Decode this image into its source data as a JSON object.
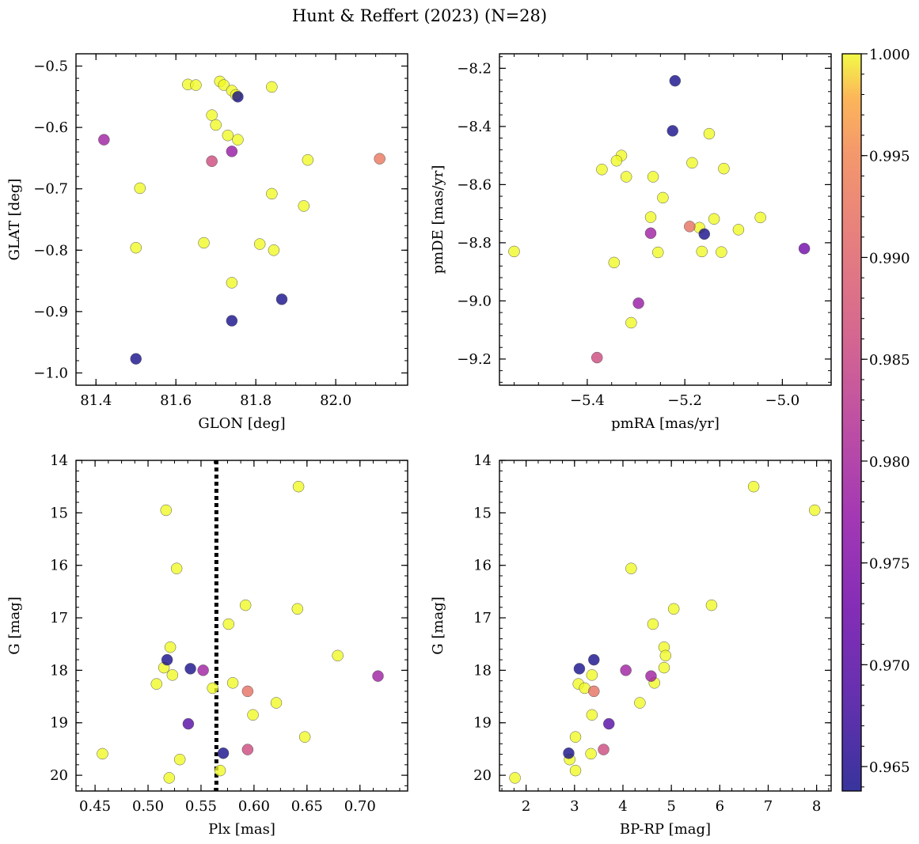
{
  "figure": {
    "title": "Hunt & Reffert (2023) (N=28)"
  },
  "colorbar": {
    "colormap": "plasma",
    "range": [
      0.9638,
      1.0
    ],
    "ticks": [
      "0.965",
      "0.970",
      "0.975",
      "0.980",
      "0.985",
      "0.990",
      "0.995",
      "1.000"
    ],
    "tick_values": [
      0.965,
      0.97,
      0.975,
      0.98,
      0.985,
      0.99,
      0.995,
      1.0
    ]
  },
  "chart_data": [
    {
      "type": "scatter",
      "xlabel": "GLON [deg]",
      "ylabel": "GLAT [deg]",
      "xlim": [
        81.35,
        82.18
      ],
      "ylim": [
        -1.02,
        -0.48
      ],
      "xticks": [
        81.4,
        81.6,
        81.8,
        82.0
      ],
      "xtick_labels": [
        "81.4",
        "81.6",
        "81.8",
        "82.0"
      ],
      "yticks": [
        -0.5,
        -0.6,
        -0.7,
        -0.8,
        -0.9,
        -1.0
      ],
      "ytick_labels": [
        "−0.5",
        "−0.6",
        "−0.7",
        "−0.8",
        "−0.9",
        "−1.0"
      ],
      "points": [
        {
          "x": 81.63,
          "y": -0.53,
          "c": 1.0
        },
        {
          "x": 81.65,
          "y": -0.531,
          "c": 1.0
        },
        {
          "x": 81.71,
          "y": -0.525,
          "c": 1.0
        },
        {
          "x": 81.72,
          "y": -0.531,
          "c": 1.0
        },
        {
          "x": 81.74,
          "y": -0.54,
          "c": 1.0
        },
        {
          "x": 81.755,
          "y": -0.55,
          "c": 0.964
        },
        {
          "x": 81.75,
          "y": -0.547,
          "c": 1.0
        },
        {
          "x": 81.84,
          "y": -0.534,
          "c": 1.0
        },
        {
          "x": 81.69,
          "y": -0.58,
          "c": 1.0
        },
        {
          "x": 81.7,
          "y": -0.596,
          "c": 1.0
        },
        {
          "x": 81.73,
          "y": -0.613,
          "c": 1.0
        },
        {
          "x": 81.755,
          "y": -0.62,
          "c": 1.0
        },
        {
          "x": 81.74,
          "y": -0.639,
          "c": 0.978
        },
        {
          "x": 81.42,
          "y": -0.62,
          "c": 0.979
        },
        {
          "x": 81.69,
          "y": -0.655,
          "c": 0.986
        },
        {
          "x": 82.11,
          "y": -0.651,
          "c": 0.993
        },
        {
          "x": 81.93,
          "y": -0.653,
          "c": 1.0
        },
        {
          "x": 81.51,
          "y": -0.699,
          "c": 1.0
        },
        {
          "x": 81.84,
          "y": -0.708,
          "c": 1.0
        },
        {
          "x": 81.92,
          "y": -0.728,
          "c": 1.0
        },
        {
          "x": 81.5,
          "y": -0.796,
          "c": 1.0
        },
        {
          "x": 81.67,
          "y": -0.788,
          "c": 1.0
        },
        {
          "x": 81.81,
          "y": -0.79,
          "c": 1.0
        },
        {
          "x": 81.845,
          "y": -0.8,
          "c": 1.0
        },
        {
          "x": 81.74,
          "y": -0.853,
          "c": 1.0
        },
        {
          "x": 81.865,
          "y": -0.88,
          "c": 0.964
        },
        {
          "x": 81.74,
          "y": -0.915,
          "c": 0.964
        },
        {
          "x": 81.5,
          "y": -0.977,
          "c": 0.964
        }
      ]
    },
    {
      "type": "scatter",
      "xlabel": "pmRA [mas/yr]",
      "ylabel": "pmDE [mas/yr]",
      "xlim": [
        -5.58,
        -4.9
      ],
      "ylim": [
        -9.29,
        -8.15
      ],
      "xticks": [
        -5.4,
        -5.2,
        -5.0
      ],
      "xtick_labels": [
        "−5.4",
        "−5.2",
        "−5.0"
      ],
      "yticks": [
        -8.2,
        -8.4,
        -8.6,
        -8.8,
        -9.0,
        -9.2
      ],
      "ytick_labels": [
        "−8.2",
        "−8.4",
        "−8.6",
        "−8.8",
        "−9.0",
        "−9.2"
      ],
      "points": [
        {
          "x": -5.22,
          "y": -8.243,
          "c": 0.964
        },
        {
          "x": -5.225,
          "y": -8.415,
          "c": 0.964
        },
        {
          "x": -5.15,
          "y": -8.425,
          "c": 1.0
        },
        {
          "x": -5.33,
          "y": -8.5,
          "c": 1.0
        },
        {
          "x": -5.34,
          "y": -8.518,
          "c": 1.0
        },
        {
          "x": -5.37,
          "y": -8.548,
          "c": 1.0
        },
        {
          "x": -5.185,
          "y": -8.525,
          "c": 1.0
        },
        {
          "x": -5.12,
          "y": -8.545,
          "c": 1.0
        },
        {
          "x": -5.32,
          "y": -8.573,
          "c": 1.0
        },
        {
          "x": -5.265,
          "y": -8.573,
          "c": 1.0
        },
        {
          "x": -5.245,
          "y": -8.645,
          "c": 1.0
        },
        {
          "x": -5.27,
          "y": -8.712,
          "c": 1.0
        },
        {
          "x": -5.045,
          "y": -8.713,
          "c": 1.0
        },
        {
          "x": -5.14,
          "y": -8.718,
          "c": 1.0
        },
        {
          "x": -5.19,
          "y": -8.744,
          "c": 0.992
        },
        {
          "x": -5.17,
          "y": -8.748,
          "c": 1.0
        },
        {
          "x": -5.09,
          "y": -8.755,
          "c": 1.0
        },
        {
          "x": -5.27,
          "y": -8.767,
          "c": 0.979
        },
        {
          "x": -5.16,
          "y": -8.77,
          "c": 0.964
        },
        {
          "x": -4.955,
          "y": -8.82,
          "c": 0.973
        },
        {
          "x": -5.55,
          "y": -8.83,
          "c": 1.0
        },
        {
          "x": -5.255,
          "y": -8.833,
          "c": 1.0
        },
        {
          "x": -5.165,
          "y": -8.83,
          "c": 1.0
        },
        {
          "x": -5.125,
          "y": -8.832,
          "c": 1.0
        },
        {
          "x": -5.345,
          "y": -8.868,
          "c": 1.0
        },
        {
          "x": -5.295,
          "y": -9.008,
          "c": 0.978
        },
        {
          "x": -5.31,
          "y": -9.075,
          "c": 1.0
        },
        {
          "x": -5.38,
          "y": -9.195,
          "c": 0.986
        }
      ]
    },
    {
      "type": "scatter",
      "xlabel": "Plx [mas]",
      "ylabel": "G [mag]",
      "xlim": [
        0.432,
        0.745
      ],
      "ylim": [
        20.3,
        14.0
      ],
      "inverted_y": true,
      "xticks": [
        0.45,
        0.5,
        0.55,
        0.6,
        0.65,
        0.7
      ],
      "xtick_labels": [
        "0.45",
        "0.50",
        "0.55",
        "0.60",
        "0.65",
        "0.70"
      ],
      "yticks": [
        14,
        15,
        16,
        17,
        18,
        19,
        20
      ],
      "ytick_labels": [
        "14",
        "15",
        "16",
        "17",
        "18",
        "19",
        "20"
      ],
      "vline": 0.5645,
      "points": [
        {
          "x": 0.642,
          "y": 14.5,
          "c": 1.0
        },
        {
          "x": 0.517,
          "y": 14.95,
          "c": 1.0
        },
        {
          "x": 0.527,
          "y": 16.06,
          "c": 1.0
        },
        {
          "x": 0.592,
          "y": 16.76,
          "c": 1.0
        },
        {
          "x": 0.641,
          "y": 16.83,
          "c": 1.0
        },
        {
          "x": 0.576,
          "y": 17.12,
          "c": 1.0
        },
        {
          "x": 0.679,
          "y": 17.72,
          "c": 1.0
        },
        {
          "x": 0.521,
          "y": 17.56,
          "c": 1.0
        },
        {
          "x": 0.518,
          "y": 17.8,
          "c": 0.964
        },
        {
          "x": 0.515,
          "y": 17.95,
          "c": 1.0
        },
        {
          "x": 0.54,
          "y": 17.97,
          "c": 0.964
        },
        {
          "x": 0.552,
          "y": 18.0,
          "c": 0.979
        },
        {
          "x": 0.523,
          "y": 18.09,
          "c": 1.0
        },
        {
          "x": 0.717,
          "y": 18.11,
          "c": 0.979
        },
        {
          "x": 0.508,
          "y": 18.26,
          "c": 1.0
        },
        {
          "x": 0.58,
          "y": 18.24,
          "c": 1.0
        },
        {
          "x": 0.561,
          "y": 18.34,
          "c": 1.0
        },
        {
          "x": 0.594,
          "y": 18.4,
          "c": 0.992
        },
        {
          "x": 0.621,
          "y": 18.62,
          "c": 1.0
        },
        {
          "x": 0.599,
          "y": 18.85,
          "c": 1.0
        },
        {
          "x": 0.538,
          "y": 19.02,
          "c": 0.97
        },
        {
          "x": 0.648,
          "y": 19.27,
          "c": 1.0
        },
        {
          "x": 0.594,
          "y": 19.51,
          "c": 0.986
        },
        {
          "x": 0.457,
          "y": 19.59,
          "c": 1.0
        },
        {
          "x": 0.571,
          "y": 19.58,
          "c": 0.964
        },
        {
          "x": 0.53,
          "y": 19.7,
          "c": 1.0
        },
        {
          "x": 0.568,
          "y": 19.91,
          "c": 1.0
        },
        {
          "x": 0.52,
          "y": 20.05,
          "c": 1.0
        }
      ]
    },
    {
      "type": "scatter",
      "xlabel": "BP-RP [mag]",
      "ylabel": "G [mag]",
      "xlim": [
        1.45,
        8.3
      ],
      "ylim": [
        20.3,
        14.0
      ],
      "inverted_y": true,
      "xticks": [
        2,
        3,
        4,
        5,
        6,
        7,
        8
      ],
      "xtick_labels": [
        "2",
        "3",
        "4",
        "5",
        "6",
        "7",
        "8"
      ],
      "yticks": [
        14,
        15,
        16,
        17,
        18,
        19,
        20
      ],
      "ytick_labels": [
        "14",
        "15",
        "16",
        "17",
        "18",
        "19",
        "20"
      ],
      "points": [
        {
          "x": 6.7,
          "y": 14.5,
          "c": 1.0
        },
        {
          "x": 7.96,
          "y": 14.95,
          "c": 1.0
        },
        {
          "x": 4.17,
          "y": 16.06,
          "c": 1.0
        },
        {
          "x": 5.83,
          "y": 16.76,
          "c": 1.0
        },
        {
          "x": 5.05,
          "y": 16.83,
          "c": 1.0
        },
        {
          "x": 4.62,
          "y": 17.12,
          "c": 1.0
        },
        {
          "x": 4.85,
          "y": 17.56,
          "c": 1.0
        },
        {
          "x": 4.88,
          "y": 17.72,
          "c": 1.0
        },
        {
          "x": 3.4,
          "y": 17.8,
          "c": 0.964
        },
        {
          "x": 4.85,
          "y": 17.95,
          "c": 1.0
        },
        {
          "x": 3.1,
          "y": 17.97,
          "c": 0.964
        },
        {
          "x": 4.06,
          "y": 18.0,
          "c": 0.979
        },
        {
          "x": 3.36,
          "y": 18.09,
          "c": 1.0
        },
        {
          "x": 4.58,
          "y": 18.11,
          "c": 0.979
        },
        {
          "x": 4.65,
          "y": 18.24,
          "c": 1.0
        },
        {
          "x": 3.08,
          "y": 18.26,
          "c": 1.0
        },
        {
          "x": 3.21,
          "y": 18.34,
          "c": 1.0
        },
        {
          "x": 3.4,
          "y": 18.4,
          "c": 0.992
        },
        {
          "x": 4.35,
          "y": 18.62,
          "c": 1.0
        },
        {
          "x": 3.36,
          "y": 18.85,
          "c": 1.0
        },
        {
          "x": 3.71,
          "y": 19.02,
          "c": 0.97
        },
        {
          "x": 3.02,
          "y": 19.27,
          "c": 1.0
        },
        {
          "x": 3.6,
          "y": 19.51,
          "c": 0.986
        },
        {
          "x": 2.88,
          "y": 19.58,
          "c": 0.964
        },
        {
          "x": 3.34,
          "y": 19.59,
          "c": 1.0
        },
        {
          "x": 2.9,
          "y": 19.7,
          "c": 1.0
        },
        {
          "x": 3.02,
          "y": 19.91,
          "c": 1.0
        },
        {
          "x": 1.77,
          "y": 20.05,
          "c": 1.0
        }
      ]
    }
  ]
}
